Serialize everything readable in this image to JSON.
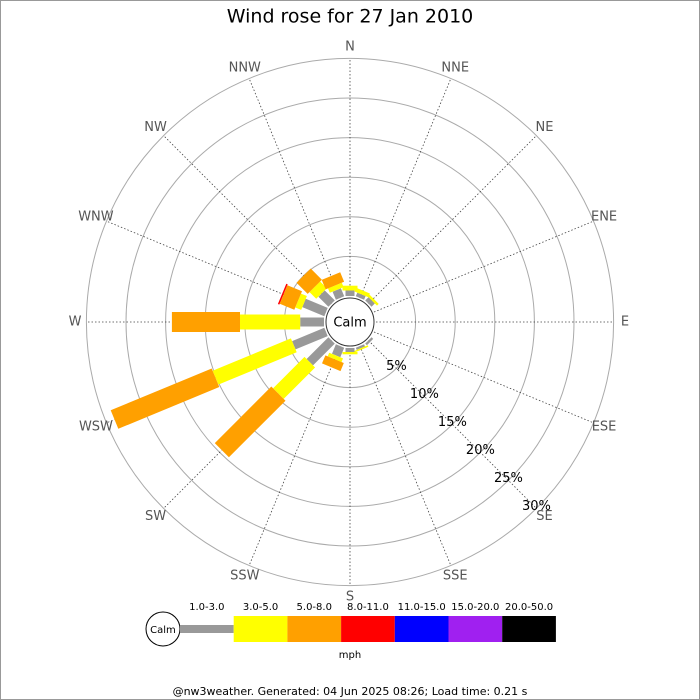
{
  "chart_data": {
    "type": "windrose",
    "title": "Wind rose for 27 Jan 2010",
    "categories": [
      "N",
      "NNE",
      "NE",
      "ENE",
      "E",
      "ESE",
      "SE",
      "SSE",
      "S",
      "SSW",
      "SW",
      "WSW",
      "W",
      "WNW",
      "NW",
      "NNW"
    ],
    "center_label": "Calm",
    "unit_label": "mph",
    "footer": "@nw3weather. Generated: 04 Jun 2025 08:26; Load time: 0.21 s",
    "rlim": [
      0,
      30
    ],
    "rticks": [
      {
        "value": 5,
        "label": "5%"
      },
      {
        "value": 10,
        "label": "10%"
      },
      {
        "value": 15,
        "label": "15%"
      },
      {
        "value": 20,
        "label": "20%"
      },
      {
        "value": 25,
        "label": "25%"
      },
      {
        "value": 30,
        "label": "30%"
      }
    ],
    "series": [
      {
        "name": "1.0-3.0",
        "color": "#999999",
        "values": [
          0.7,
          0.5,
          0.6,
          0,
          0,
          0,
          0.3,
          0.3,
          0.5,
          1.3,
          3.9,
          4.4,
          3.0,
          3.0,
          1.8,
          1.1
        ]
      },
      {
        "name": "3.0-5.0",
        "color": "#ffff00",
        "values": [
          0.6,
          0.5,
          0.3,
          0,
          0,
          0,
          0,
          0.2,
          0.3,
          0.5,
          5.6,
          10.7,
          7.6,
          0.8,
          1.2,
          0.6
        ]
      },
      {
        "name": "5.0-8.0",
        "color": "#ffa000",
        "values": [
          0,
          0,
          0,
          0,
          0,
          0,
          0,
          0,
          0,
          1.1,
          10.1,
          13.8,
          8.6,
          2.0,
          2.0,
          1.3
        ]
      },
      {
        "name": "8.0-11.0",
        "color": "#ff0000",
        "values": [
          0,
          0,
          0,
          0,
          0,
          0,
          0,
          0,
          0,
          0,
          0,
          0,
          0,
          0.2,
          0,
          0
        ]
      },
      {
        "name": "11.0-15.0",
        "color": "#0000ff",
        "values": [
          0,
          0,
          0,
          0,
          0,
          0,
          0,
          0,
          0,
          0,
          0,
          0,
          0,
          0,
          0,
          0
        ]
      },
      {
        "name": "15.0-20.0",
        "color": "#a020f0",
        "values": [
          0,
          0,
          0,
          0,
          0,
          0,
          0,
          0,
          0,
          0,
          0,
          0,
          0,
          0,
          0,
          0
        ]
      },
      {
        "name": "20.0-50.0",
        "color": "#000000",
        "values": [
          0,
          0,
          0,
          0,
          0,
          0,
          0,
          0,
          0,
          0,
          0,
          0,
          0,
          0,
          0,
          0
        ]
      }
    ]
  }
}
